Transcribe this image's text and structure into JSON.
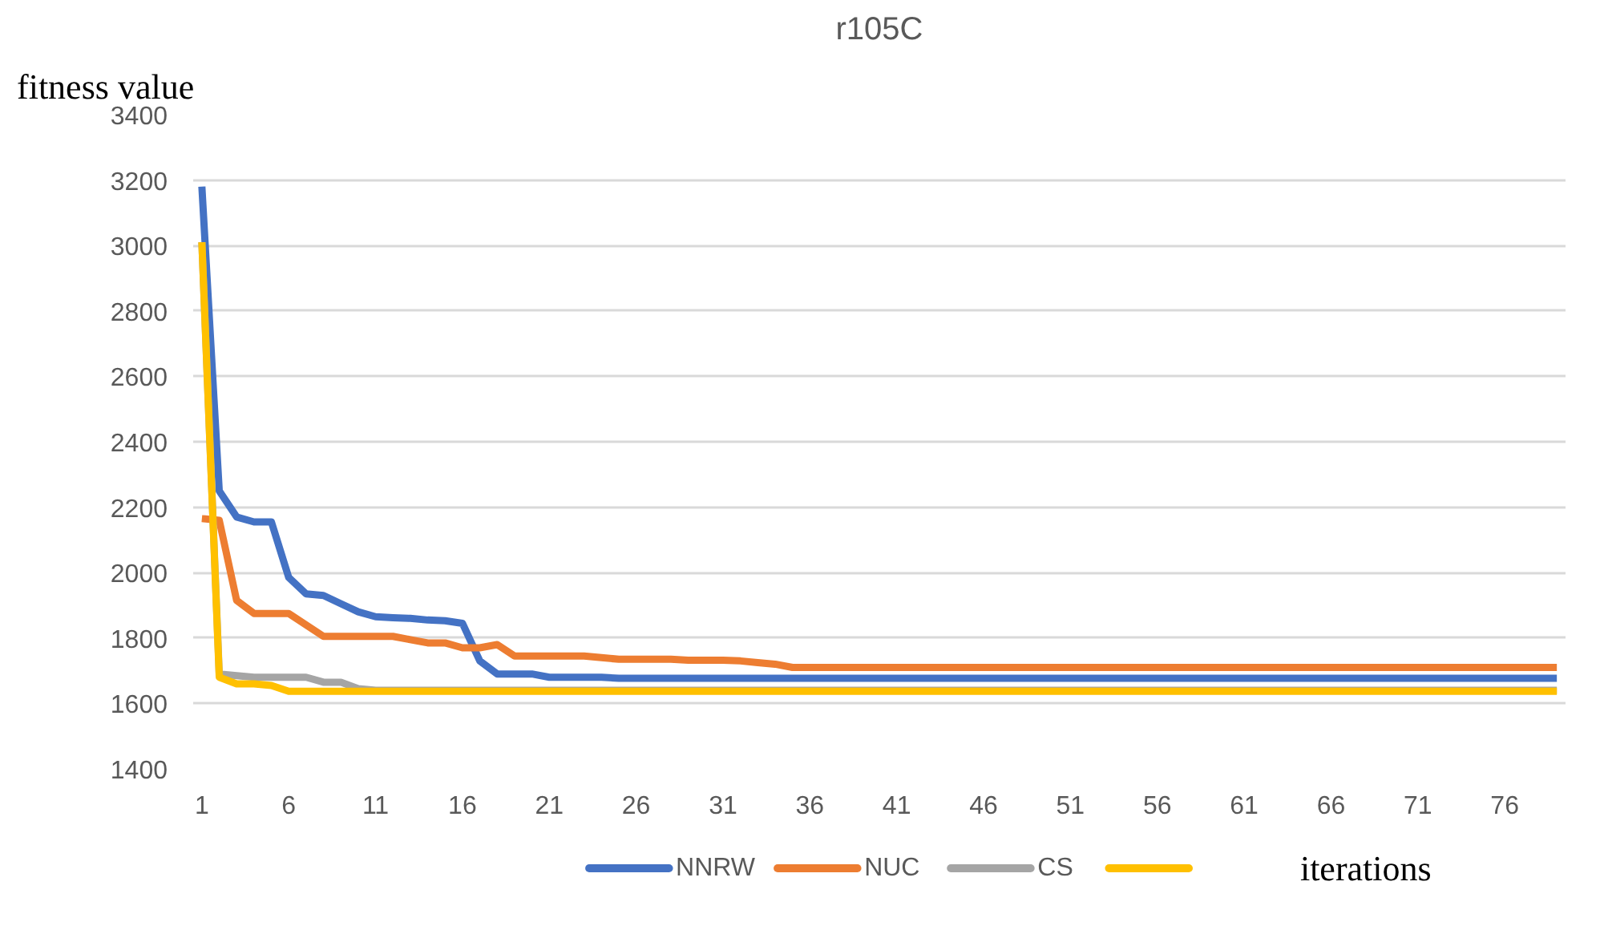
{
  "chart_data": {
    "type": "line",
    "title": "r105C",
    "ylabel": "fitness value",
    "xlabel": "iterations",
    "x": [
      1,
      2,
      3,
      4,
      5,
      6,
      7,
      8,
      9,
      10,
      11,
      12,
      13,
      14,
      15,
      16,
      17,
      18,
      19,
      20,
      21,
      22,
      23,
      24,
      25,
      26,
      27,
      28,
      29,
      30,
      31,
      32,
      33,
      34,
      35,
      36,
      37,
      38,
      39,
      40,
      41,
      42,
      43,
      44,
      45,
      46,
      47,
      48,
      49,
      50,
      51,
      52,
      53,
      54,
      55,
      56,
      57,
      58,
      59,
      60,
      61,
      62,
      63,
      64,
      65,
      66,
      67,
      68,
      69,
      70,
      71,
      72,
      73,
      74,
      75,
      76,
      77,
      78,
      79
    ],
    "xlim": [
      0.5,
      79.5
    ],
    "xticks": [
      1,
      6,
      11,
      16,
      21,
      26,
      31,
      36,
      41,
      46,
      51,
      56,
      61,
      66,
      71,
      76
    ],
    "ylim": [
      1400,
      3400
    ],
    "yticks": [
      1400,
      1600,
      1800,
      2000,
      2200,
      2400,
      2600,
      2800,
      3000,
      3200,
      3400
    ],
    "grid": "y",
    "legend": "bottom",
    "marker": "none",
    "line_style": "solid",
    "series": [
      {
        "name": "NNRW",
        "color": "#4472c4",
        "values": [
          3180,
          2250,
          2170,
          2155,
          2155,
          1985,
          1935,
          1930,
          1905,
          1880,
          1865,
          1862,
          1860,
          1855,
          1853,
          1845,
          1730,
          1690,
          1690,
          1690,
          1680,
          1680,
          1680,
          1680,
          1677,
          1677,
          1677,
          1677,
          1677,
          1677,
          1677,
          1677,
          1677,
          1677,
          1677,
          1677,
          1677,
          1677,
          1677,
          1677,
          1677,
          1677,
          1677,
          1677,
          1677,
          1677,
          1677,
          1677,
          1677,
          1677,
          1677,
          1677,
          1677,
          1677,
          1677,
          1677,
          1677,
          1677,
          1677,
          1677,
          1677,
          1677,
          1677,
          1677,
          1677,
          1677,
          1677,
          1677,
          1677,
          1677,
          1677,
          1677,
          1677,
          1677,
          1677,
          1677,
          1677,
          1677,
          1677
        ]
      },
      {
        "name": "NUC",
        "color": "#ed7d31",
        "values": [
          2165,
          2160,
          1915,
          1875,
          1875,
          1875,
          1840,
          1805,
          1805,
          1805,
          1805,
          1805,
          1795,
          1785,
          1785,
          1770,
          1770,
          1780,
          1745,
          1745,
          1745,
          1745,
          1745,
          1740,
          1735,
          1735,
          1735,
          1735,
          1732,
          1732,
          1732,
          1730,
          1725,
          1720,
          1710,
          1710,
          1710,
          1710,
          1710,
          1710,
          1710,
          1710,
          1710,
          1710,
          1710,
          1710,
          1710,
          1710,
          1710,
          1710,
          1710,
          1710,
          1710,
          1710,
          1710,
          1710,
          1710,
          1710,
          1710,
          1710,
          1710,
          1710,
          1710,
          1710,
          1710,
          1710,
          1710,
          1710,
          1710,
          1710,
          1710,
          1710,
          1710,
          1710,
          1710,
          1710,
          1710,
          1710,
          1710
        ]
      },
      {
        "name": "CS",
        "color": "#a5a5a5",
        "values": [
          3010,
          1690,
          1685,
          1680,
          1680,
          1680,
          1680,
          1665,
          1665,
          1645,
          1640,
          1640,
          1640,
          1640,
          1640,
          1640,
          1640,
          1640,
          1640,
          1640,
          1640,
          1640,
          1640,
          1640,
          1640,
          1640,
          1640,
          1640,
          1640,
          1640,
          1640,
          1640,
          1640,
          1640,
          1640,
          1640,
          1640,
          1640,
          1640,
          1640,
          1640,
          1640,
          1640,
          1640,
          1640,
          1640,
          1640,
          1640,
          1640,
          1640,
          1640,
          1640,
          1640,
          1640,
          1640,
          1640,
          1640,
          1640,
          1640,
          1640,
          1640,
          1640,
          1640,
          1640,
          1640,
          1640,
          1640,
          1640,
          1640,
          1640,
          1640,
          1640,
          1640,
          1640,
          1640,
          1640,
          1640,
          1640,
          1640
        ]
      },
      {
        "color": "#ffc000",
        "values": [
          3010,
          1680,
          1660,
          1660,
          1655,
          1637,
          1637,
          1637,
          1637,
          1637,
          1637,
          1637,
          1637,
          1637,
          1637,
          1637,
          1637,
          1637,
          1637,
          1637,
          1637,
          1637,
          1637,
          1637,
          1637,
          1637,
          1637,
          1637,
          1637,
          1637,
          1637,
          1637,
          1637,
          1637,
          1637,
          1637,
          1637,
          1637,
          1637,
          1637,
          1637,
          1637,
          1637,
          1637,
          1637,
          1637,
          1637,
          1637,
          1637,
          1637,
          1637,
          1637,
          1637,
          1637,
          1637,
          1637,
          1637,
          1637,
          1637,
          1637,
          1637,
          1637,
          1637,
          1637,
          1637,
          1637,
          1637,
          1637,
          1637,
          1637,
          1637,
          1637,
          1637,
          1637,
          1637,
          1637,
          1637,
          1637,
          1637
        ]
      }
    ]
  }
}
